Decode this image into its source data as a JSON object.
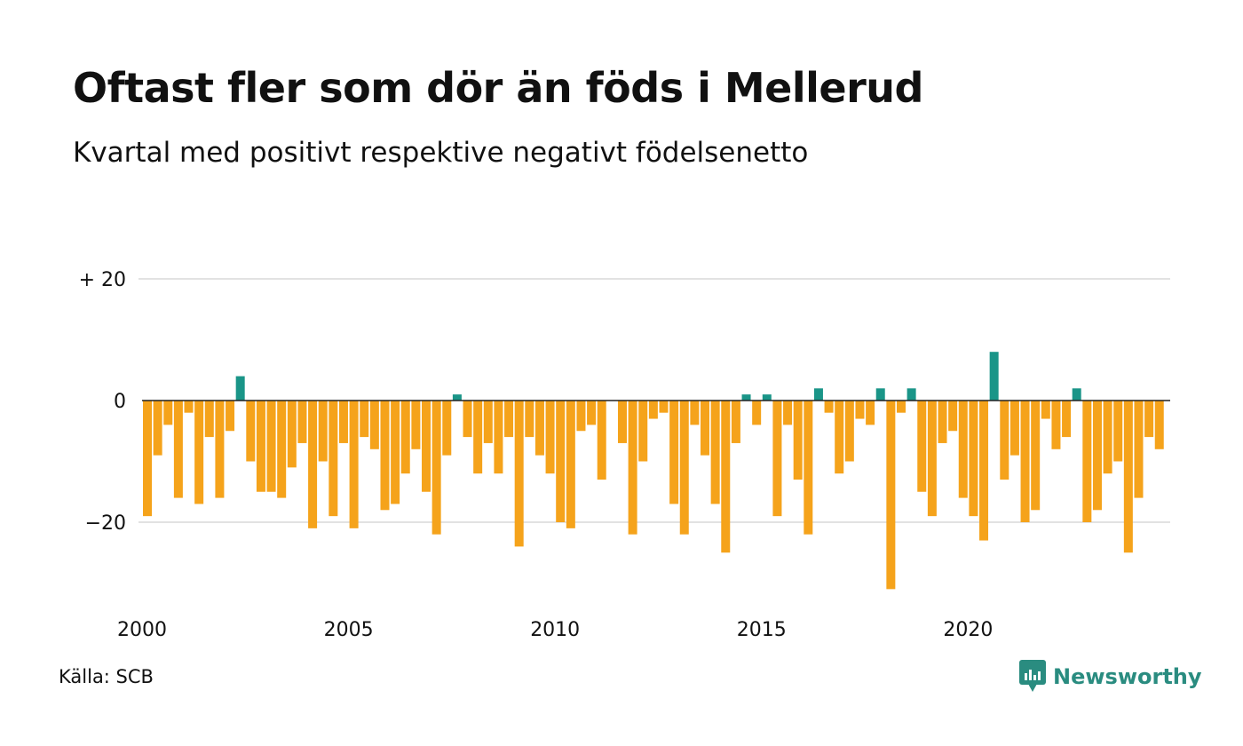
{
  "header": {
    "title": "Oftast fler som dör än föds i Mellerud",
    "subtitle": "Kvartal med positivt respektive negativt födelsenetto"
  },
  "footer": {
    "source": "Källa: SCB",
    "brand": "Newsworthy"
  },
  "colors": {
    "positive": "#1a9588",
    "negative": "#f5a31b",
    "grid": "#e2e2e2",
    "zero_line": "#222222",
    "brand": "#2a8c80"
  },
  "chart_data": {
    "type": "bar",
    "title": "Oftast fler som dör än föds i Mellerud",
    "subtitle": "Kvartal med positivt respektive negativt födelsenetto",
    "xlabel": "",
    "ylabel": "",
    "x_start": 2000,
    "periods_per_year": 4,
    "ylim": [
      -32,
      20
    ],
    "y_ticks": [
      {
        "value": 20,
        "label": "+ 20"
      },
      {
        "value": 0,
        "label": "0"
      },
      {
        "value": -20,
        "label": "−20"
      }
    ],
    "x_ticks": [
      {
        "value": 2000,
        "label": "2000"
      },
      {
        "value": 2005,
        "label": "2005"
      },
      {
        "value": 2010,
        "label": "2010"
      },
      {
        "value": 2015,
        "label": "2015"
      },
      {
        "value": 2020,
        "label": "2020"
      }
    ],
    "grid": true,
    "legend": "none",
    "values": [
      -19,
      -9,
      -4,
      -16,
      -2,
      -17,
      -6,
      -16,
      -5,
      4,
      -10,
      -15,
      -15,
      -16,
      -11,
      -7,
      -21,
      -10,
      -19,
      -7,
      -21,
      -6,
      -8,
      -18,
      -17,
      -12,
      -8,
      -15,
      -22,
      -9,
      1,
      -6,
      -12,
      -7,
      -12,
      -6,
      -24,
      -6,
      -9,
      -12,
      -20,
      -21,
      -5,
      -4,
      -13,
      0,
      -7,
      -22,
      -10,
      -3,
      -2,
      -17,
      -22,
      -4,
      -9,
      -17,
      -25,
      -7,
      1,
      -4,
      1,
      -19,
      -4,
      -13,
      -22,
      2,
      -2,
      -12,
      -10,
      -3,
      -4,
      2,
      -31,
      -2,
      2,
      -15,
      -19,
      -7,
      -5,
      -16,
      -19,
      -23,
      8,
      -13,
      -9,
      -20,
      -18,
      -3,
      -8,
      -6,
      2,
      -20,
      -18,
      -12,
      -10,
      -25,
      -16,
      -6,
      -8
    ]
  }
}
